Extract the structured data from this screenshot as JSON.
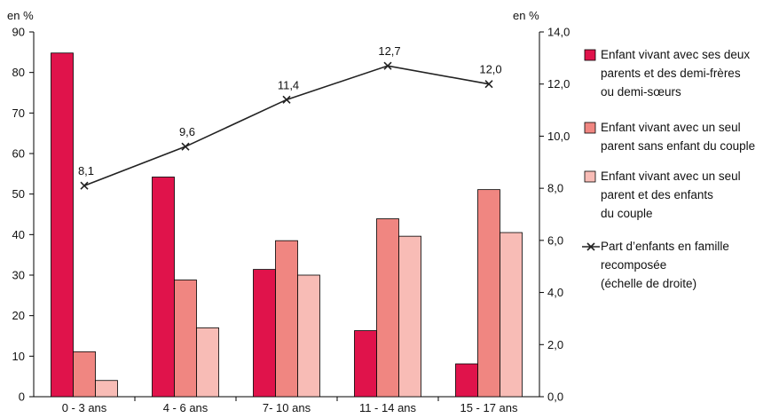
{
  "chart_data": {
    "type": "bar",
    "categories": [
      "0 - 3 ans",
      "4 - 6 ans",
      "7- 10 ans",
      "11 - 14 ans",
      "15 - 17 ans"
    ],
    "series": [
      {
        "name": "Enfant vivant avec ses deux parents et des demi-frères ou demi-sœurs",
        "color": "#e0134b",
        "values": [
          84.8,
          54.2,
          31.4,
          16.3,
          8.1
        ]
      },
      {
        "name": "Enfant vivant avec un seul parent sans enfant du couple",
        "color": "#f08681",
        "values": [
          11.1,
          28.8,
          38.5,
          43.9,
          51.1
        ]
      },
      {
        "name": "Enfant vivant avec un seul parent et des enfants du couple",
        "color": "#f8bcb6",
        "values": [
          4.0,
          17.0,
          30.0,
          39.6,
          40.5
        ]
      }
    ],
    "line_series": {
      "name": "Part d'enfants en famille recomposée (échelle de droite)",
      "color": "#222222",
      "values": [
        8.1,
        9.6,
        11.4,
        12.7,
        12.0
      ],
      "labels": [
        "8,1",
        "9,6",
        "11,4",
        "12,7",
        "12,0"
      ]
    },
    "left_axis": {
      "unit": "en %",
      "min": 0,
      "max": 90,
      "ticks": [
        "0",
        "10",
        "20",
        "30",
        "40",
        "50",
        "60",
        "70",
        "80",
        "90"
      ]
    },
    "right_axis": {
      "unit": "en %",
      "min": 0,
      "max": 14,
      "ticks": [
        "0,0",
        "2,0",
        "4,0",
        "6,0",
        "8,0",
        "10,0",
        "12,0",
        "14,0"
      ]
    },
    "legend": {
      "placement": "right",
      "entries": [
        {
          "lines": [
            "Enfant vivant avec ses deux",
            "parents et des demi-frères",
            "ou demi-sœurs"
          ],
          "marker": "box",
          "color": "#e0134b"
        },
        {
          "lines": [
            "Enfant vivant avec un seul",
            "parent sans enfant du couple"
          ],
          "marker": "box",
          "color": "#f08681"
        },
        {
          "lines": [
            "Enfant vivant avec un seul",
            "parent et des enfants",
            "du couple"
          ],
          "marker": "box",
          "color": "#f8bcb6"
        },
        {
          "lines": [
            "Part d’enfants en famille",
            "recomposée",
            "(échelle de droite)"
          ],
          "marker": "line-cross",
          "color": "#222222"
        }
      ]
    },
    "grid": false
  }
}
